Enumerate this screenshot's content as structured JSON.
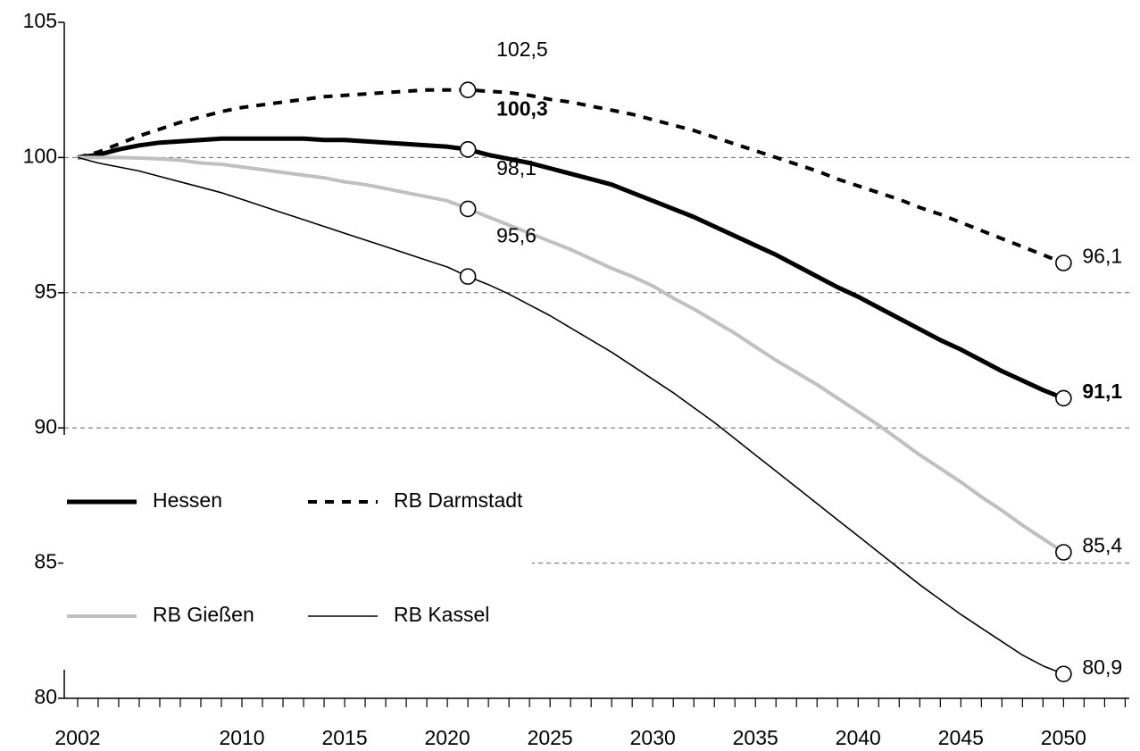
{
  "chart_data": {
    "type": "line",
    "x": [
      2002,
      2003,
      2004,
      2005,
      2006,
      2007,
      2008,
      2009,
      2010,
      2011,
      2012,
      2013,
      2014,
      2015,
      2016,
      2017,
      2018,
      2019,
      2020,
      2021,
      2022,
      2023,
      2024,
      2025,
      2026,
      2027,
      2028,
      2029,
      2030,
      2031,
      2032,
      2033,
      2034,
      2035,
      2036,
      2037,
      2038,
      2039,
      2040,
      2041,
      2042,
      2043,
      2044,
      2045,
      2046,
      2047,
      2048,
      2049,
      2050
    ],
    "series": [
      {
        "name": "Hessen",
        "color": "#000000",
        "line_style": "thick",
        "values": [
          100,
          100.1,
          100.3,
          100.45,
          100.55,
          100.6,
          100.65,
          100.7,
          100.7,
          100.7,
          100.7,
          100.7,
          100.65,
          100.65,
          100.6,
          100.55,
          100.5,
          100.45,
          100.4,
          100.3,
          100.1,
          99.95,
          99.8,
          99.6,
          99.4,
          99.2,
          99.0,
          98.7,
          98.4,
          98.1,
          97.8,
          97.45,
          97.1,
          96.75,
          96.4,
          96.0,
          95.6,
          95.2,
          94.85,
          94.45,
          94.05,
          93.65,
          93.25,
          92.9,
          92.5,
          92.1,
          91.75,
          91.4,
          91.1
        ]
      },
      {
        "name": "RB Darmstadt",
        "color": "#000000",
        "line_style": "dashed",
        "values": [
          100,
          100.2,
          100.5,
          100.8,
          101.05,
          101.3,
          101.5,
          101.7,
          101.85,
          101.95,
          102.05,
          102.15,
          102.25,
          102.3,
          102.35,
          102.4,
          102.45,
          102.5,
          102.5,
          102.5,
          102.45,
          102.4,
          102.3,
          102.15,
          102.05,
          101.9,
          101.75,
          101.6,
          101.4,
          101.2,
          101.0,
          100.75,
          100.5,
          100.25,
          100.0,
          99.75,
          99.5,
          99.2,
          98.95,
          98.7,
          98.45,
          98.15,
          97.9,
          97.6,
          97.3,
          97.0,
          96.7,
          96.4,
          96.1
        ]
      },
      {
        "name": "RB Gießen",
        "color": "#c0c0c0",
        "line_style": "solid",
        "values": [
          100,
          100,
          100,
          99.98,
          99.95,
          99.9,
          99.8,
          99.75,
          99.65,
          99.55,
          99.45,
          99.35,
          99.25,
          99.1,
          99.0,
          98.85,
          98.7,
          98.55,
          98.4,
          98.1,
          97.8,
          97.5,
          97.2,
          96.9,
          96.6,
          96.25,
          95.9,
          95.6,
          95.25,
          94.8,
          94.4,
          93.95,
          93.5,
          93.0,
          92.5,
          92.05,
          91.6,
          91.1,
          90.6,
          90.1,
          89.55,
          89.0,
          88.5,
          88.0,
          87.45,
          86.95,
          86.4,
          85.9,
          85.4
        ]
      },
      {
        "name": "RB Kassel",
        "color": "#000000",
        "line_style": "thin",
        "values": [
          100,
          99.8,
          99.65,
          99.5,
          99.3,
          99.1,
          98.9,
          98.7,
          98.45,
          98.2,
          97.95,
          97.7,
          97.45,
          97.2,
          96.95,
          96.7,
          96.45,
          96.2,
          95.95,
          95.6,
          95.3,
          94.95,
          94.55,
          94.15,
          93.7,
          93.25,
          92.8,
          92.3,
          91.8,
          91.3,
          90.75,
          90.2,
          89.6,
          89.0,
          88.4,
          87.8,
          87.2,
          86.6,
          86.0,
          85.4,
          84.8,
          84.2,
          83.65,
          83.1,
          82.6,
          82.1,
          81.6,
          81.2,
          80.9
        ]
      }
    ],
    "annotations": [
      {
        "x": 2021,
        "y": 102.5,
        "label": "102,5",
        "bold": false
      },
      {
        "x": 2021,
        "y": 100.3,
        "label": "100,3",
        "bold": true
      },
      {
        "x": 2021,
        "y": 98.1,
        "label": "98,1",
        "bold": false
      },
      {
        "x": 2021,
        "y": 95.6,
        "label": "95,6",
        "bold": false
      },
      {
        "x": 2050,
        "y": 96.1,
        "label": "96,1",
        "bold": false
      },
      {
        "x": 2050,
        "y": 91.1,
        "label": "91,1",
        "bold": true
      },
      {
        "x": 2050,
        "y": 85.4,
        "label": "85,4",
        "bold": false
      },
      {
        "x": 2050,
        "y": 80.9,
        "label": "80,9",
        "bold": false
      }
    ],
    "xlim": [
      2001.35,
      2053.2
    ],
    "xticks": [
      2002,
      2010,
      2015,
      2020,
      2025,
      2030,
      2035,
      2040,
      2045,
      2050
    ],
    "xminorticks": [
      2002,
      2003,
      2004,
      2005,
      2006,
      2007,
      2008,
      2009,
      2010,
      2011,
      2012,
      2013,
      2014,
      2015,
      2016,
      2017,
      2018,
      2019,
      2020,
      2021,
      2022,
      2023,
      2024,
      2025,
      2026,
      2027,
      2028,
      2029,
      2030,
      2031,
      2032,
      2033,
      2034,
      2035,
      2036,
      2037,
      2038,
      2039,
      2040,
      2041,
      2042,
      2043,
      2044,
      2045,
      2046,
      2047,
      2048,
      2049,
      2050,
      2051,
      2052,
      2053
    ],
    "ylim": [
      80,
      105
    ],
    "yticks": [
      80,
      85,
      90,
      95,
      100,
      105
    ],
    "grid": true,
    "legend": "inside-left"
  }
}
